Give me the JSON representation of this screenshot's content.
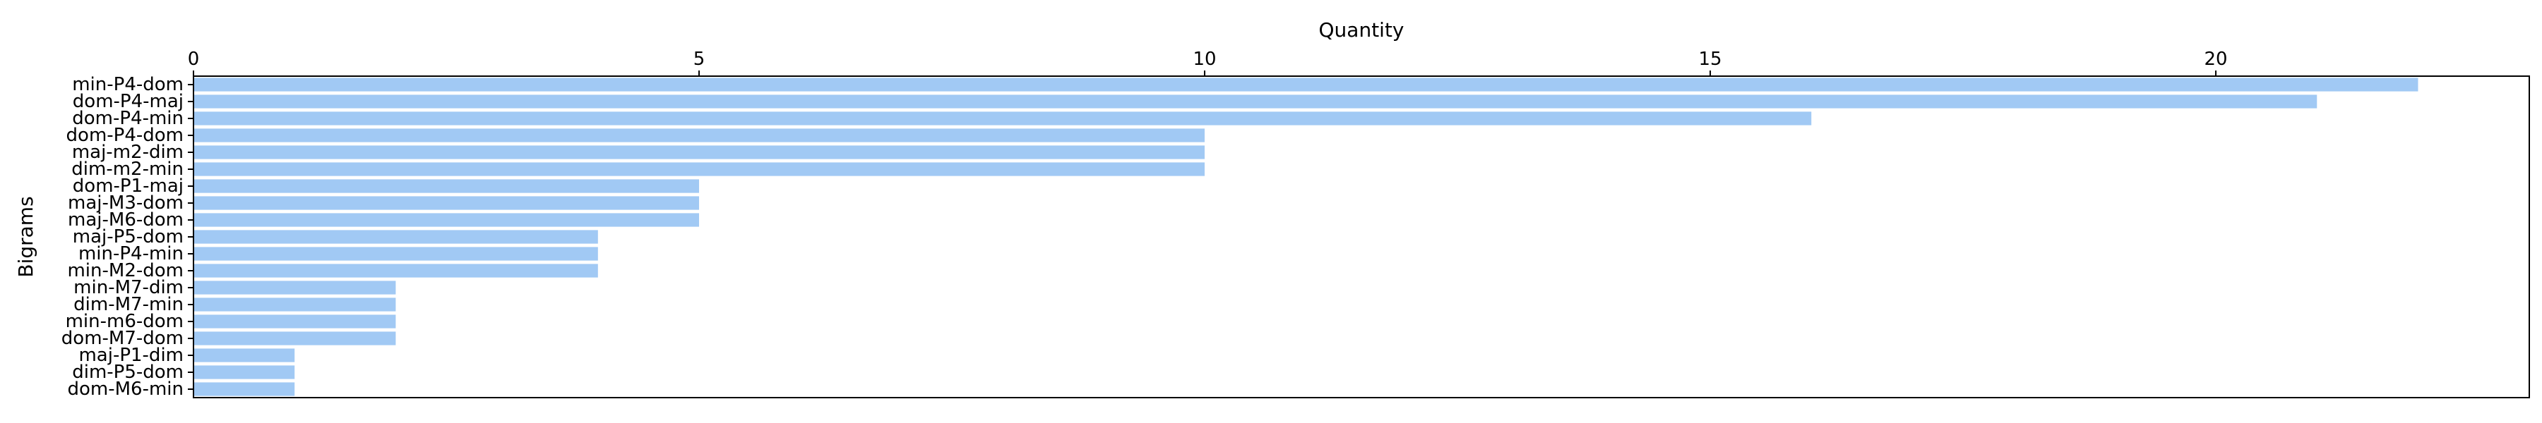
{
  "chart_data": {
    "type": "bar",
    "orientation": "horizontal",
    "xlabel": "Quantity",
    "ylabel": "Bigrams",
    "x_axis_position": "top",
    "xlim": [
      0,
      23.1
    ],
    "xticks": [
      0,
      5,
      10,
      15,
      20
    ],
    "grid": false,
    "bar_color": "#a1c9f4",
    "categories": [
      "min-P4-dom",
      "dom-P4-maj",
      "dom-P4-min",
      "dom-P4-dom",
      "maj-m2-dim",
      "dim-m2-min",
      "dom-P1-maj",
      "maj-M3-dom",
      "maj-M6-dom",
      "maj-P5-dom",
      "min-P4-min",
      "min-M2-dom",
      "min-M7-dim",
      "dim-M7-min",
      "min-m6-dom",
      "dom-M7-dom",
      "maj-P1-dim",
      "dim-P5-dom",
      "dom-M6-min"
    ],
    "values": [
      22,
      21,
      16,
      10,
      10,
      10,
      5,
      5,
      5,
      4,
      4,
      4,
      2,
      2,
      2,
      2,
      1,
      1,
      1
    ]
  }
}
